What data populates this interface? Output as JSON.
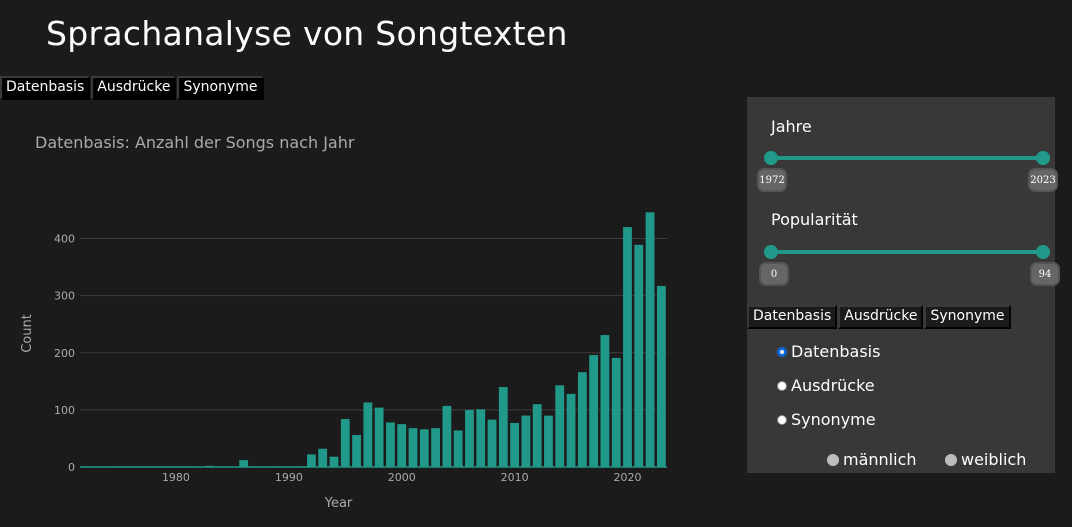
{
  "page": {
    "title": "Sprachanalyse von Songtexten"
  },
  "top_tabs": [
    "Datenbasis",
    "Ausdrücke",
    "Synonyme"
  ],
  "side_tabs": [
    "Datenbasis",
    "Ausdrücke",
    "Synonyme"
  ],
  "filters": {
    "years": {
      "label": "Jahre",
      "min": "1972",
      "max": "2023"
    },
    "popularity": {
      "label": "Popularität",
      "min": "0",
      "max": "94"
    }
  },
  "radio_options": [
    {
      "label": "Datenbasis",
      "checked": true
    },
    {
      "label": "Ausdrücke",
      "checked": false
    },
    {
      "label": "Synonyme",
      "checked": false
    }
  ],
  "gender_options": [
    "männlich",
    "weiblich"
  ],
  "colors": {
    "bar": "#21998a",
    "background": "#1b1b1b",
    "panel": "#383838"
  },
  "chart_data": {
    "type": "bar",
    "title": "Datenbasis: Anzahl der Songs nach Jahr",
    "xlabel": "Year",
    "ylabel": "Count",
    "xlim": [
      1971.5,
      2023.5
    ],
    "ylim": [
      0,
      450
    ],
    "xticks": [
      1980,
      1990,
      2000,
      2010,
      2020
    ],
    "yticks": [
      0,
      100,
      200,
      300,
      400
    ],
    "grid": true,
    "x": [
      1972,
      1973,
      1974,
      1975,
      1976,
      1977,
      1978,
      1979,
      1980,
      1981,
      1982,
      1983,
      1984,
      1985,
      1986,
      1987,
      1988,
      1989,
      1990,
      1991,
      1992,
      1993,
      1994,
      1995,
      1996,
      1997,
      1998,
      1999,
      2000,
      2001,
      2002,
      2003,
      2004,
      2005,
      2006,
      2007,
      2008,
      2009,
      2010,
      2011,
      2012,
      2013,
      2014,
      2015,
      2016,
      2017,
      2018,
      2019,
      2020,
      2021,
      2022,
      2023
    ],
    "values": [
      1,
      0,
      0,
      1,
      1,
      1,
      1,
      1,
      1,
      1,
      0,
      2,
      0,
      0,
      12,
      0,
      0,
      1,
      0,
      1,
      22,
      32,
      18,
      84,
      56,
      113,
      104,
      78,
      75,
      68,
      66,
      68,
      107,
      64,
      100,
      101,
      83,
      140,
      77,
      90,
      110,
      90,
      143,
      128,
      166,
      196,
      231,
      191,
      420,
      389,
      446,
      317
    ]
  }
}
